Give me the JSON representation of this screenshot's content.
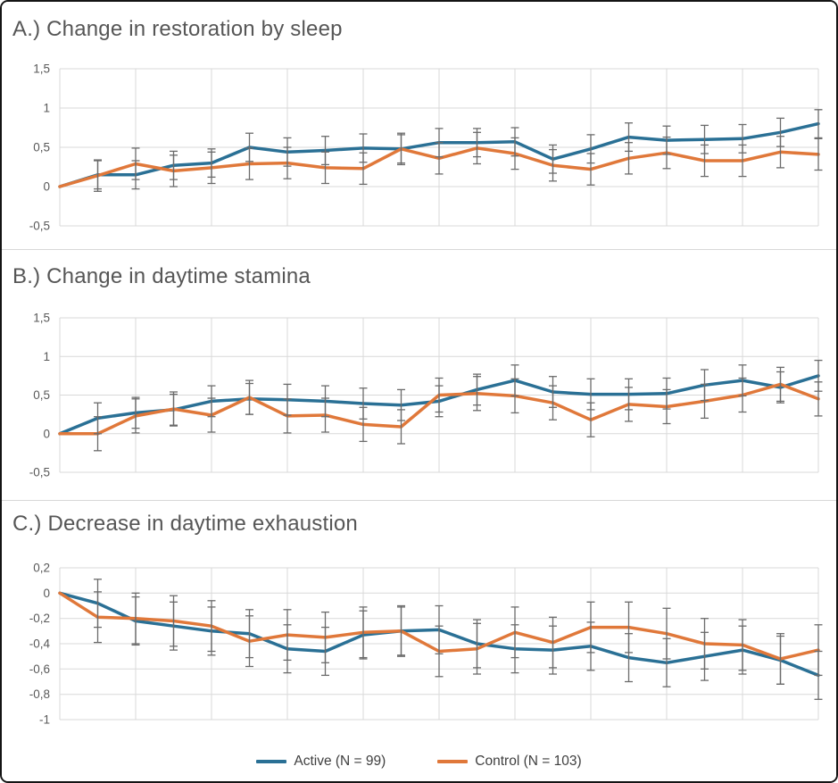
{
  "colors": {
    "active": "#2a7095",
    "control": "#e0783a",
    "grid": "#d9d9d9",
    "error_bar": "#6b6b6b",
    "tick_text": "#595959",
    "title_text": "#565656",
    "frame_border": "#141414",
    "panel_separator": "#d8d8d8"
  },
  "legend": {
    "items": [
      {
        "label": "Active (N = 99)",
        "color_key": "active"
      },
      {
        "label": "Control (N = 103)",
        "color_key": "control"
      }
    ]
  },
  "chart_data": [
    {
      "id": "A",
      "type": "line",
      "title": "A.) Change in restoration by sleep",
      "xlabel": "",
      "ylabel": "",
      "x": [
        0,
        1,
        2,
        3,
        4,
        5,
        6,
        7,
        8,
        9,
        10,
        11,
        12,
        13,
        14,
        15,
        16,
        17,
        18,
        19,
        20
      ],
      "x_tick_labels": [],
      "x_gridline_every": 2,
      "ylim": [
        -0.5,
        1.5
      ],
      "grid": true,
      "yticks": [
        {
          "v": 1.5,
          "label": "1,5"
        },
        {
          "v": 1,
          "label": "1"
        },
        {
          "v": 0.5,
          "label": "0,5"
        },
        {
          "v": 0,
          "label": "0"
        },
        {
          "v": -0.5,
          "label": "-0,5"
        }
      ],
      "series": [
        {
          "name": "Active (N = 99)",
          "color_key": "active",
          "error": 0.18,
          "values": [
            0,
            0.15,
            0.15,
            0.27,
            0.3,
            0.5,
            0.44,
            0.46,
            0.49,
            0.48,
            0.56,
            0.56,
            0.57,
            0.35,
            0.48,
            0.63,
            0.59,
            0.6,
            0.61,
            0.69,
            0.8
          ]
        },
        {
          "name": "Control (N = 103)",
          "color_key": "control",
          "error": 0.2,
          "values": [
            0,
            0.14,
            0.29,
            0.2,
            0.24,
            0.29,
            0.3,
            0.24,
            0.23,
            0.48,
            0.36,
            0.49,
            0.42,
            0.27,
            0.22,
            0.36,
            0.43,
            0.33,
            0.33,
            0.44,
            0.41
          ]
        }
      ]
    },
    {
      "id": "B",
      "type": "line",
      "title": "B.) Change in daytime stamina",
      "xlabel": "",
      "ylabel": "",
      "x": [
        0,
        1,
        2,
        3,
        4,
        5,
        6,
        7,
        8,
        9,
        10,
        11,
        12,
        13,
        14,
        15,
        16,
        17,
        18,
        19,
        20
      ],
      "x_tick_labels": [],
      "x_gridline_every": 2,
      "ylim": [
        -0.5,
        1.5
      ],
      "grid": true,
      "yticks": [
        {
          "v": 1.5,
          "label": "1,5"
        },
        {
          "v": 1,
          "label": "1"
        },
        {
          "v": 0.5,
          "label": "0,5"
        },
        {
          "v": 0,
          "label": "0"
        },
        {
          "v": -0.5,
          "label": "-0,5"
        }
      ],
      "series": [
        {
          "name": "Active (N = 99)",
          "color_key": "active",
          "error": 0.2,
          "values": [
            0,
            0.2,
            0.27,
            0.31,
            0.42,
            0.45,
            0.44,
            0.42,
            0.39,
            0.37,
            0.42,
            0.57,
            0.69,
            0.54,
            0.51,
            0.51,
            0.52,
            0.63,
            0.69,
            0.6,
            0.75
          ]
        },
        {
          "name": "Control (N = 103)",
          "color_key": "control",
          "error": 0.22,
          "values": [
            0,
            0.0,
            0.23,
            0.32,
            0.24,
            0.47,
            0.23,
            0.24,
            0.12,
            0.09,
            0.5,
            0.52,
            0.49,
            0.4,
            0.18,
            0.38,
            0.35,
            0.42,
            0.5,
            0.64,
            0.45
          ]
        }
      ]
    },
    {
      "id": "C",
      "type": "line",
      "title": "C.) Decrease in daytime exhaustion",
      "xlabel": "",
      "ylabel": "",
      "x": [
        0,
        1,
        2,
        3,
        4,
        5,
        6,
        7,
        8,
        9,
        10,
        11,
        12,
        13,
        14,
        15,
        16,
        17,
        18,
        19,
        20
      ],
      "x_tick_labels": [],
      "x_gridline_every": 2,
      "ylim": [
        -1.0,
        0.2
      ],
      "grid": true,
      "yticks": [
        {
          "v": 0.2,
          "label": "0,2"
        },
        {
          "v": 0,
          "label": "0"
        },
        {
          "v": -0.2,
          "label": "-0,2"
        },
        {
          "v": -0.4,
          "label": "-0,4"
        },
        {
          "v": -0.6,
          "label": "-0,6"
        },
        {
          "v": -0.8,
          "label": "-0,8"
        },
        {
          "v": -1,
          "label": "-1"
        }
      ],
      "series": [
        {
          "name": "Active (N = 99)",
          "color_key": "active",
          "error": 0.19,
          "values": [
            0,
            -0.08,
            -0.22,
            -0.26,
            -0.3,
            -0.32,
            -0.44,
            -0.46,
            -0.33,
            -0.3,
            -0.29,
            -0.4,
            -0.44,
            -0.45,
            -0.42,
            -0.51,
            -0.55,
            -0.5,
            -0.45,
            -0.53,
            -0.65
          ]
        },
        {
          "name": "Control (N = 103)",
          "color_key": "control",
          "error": 0.2,
          "values": [
            0,
            -0.19,
            -0.2,
            -0.22,
            -0.26,
            -0.38,
            -0.33,
            -0.35,
            -0.31,
            -0.3,
            -0.46,
            -0.44,
            -0.31,
            -0.39,
            -0.27,
            -0.27,
            -0.32,
            -0.4,
            -0.41,
            -0.52,
            -0.45
          ]
        }
      ]
    }
  ]
}
